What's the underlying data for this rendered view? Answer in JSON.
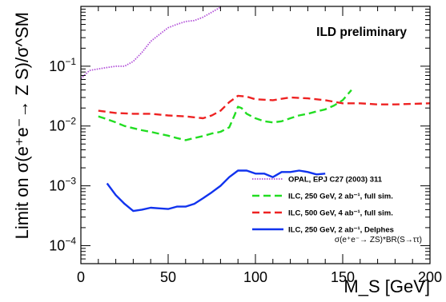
{
  "chart_data": {
    "type": "line",
    "title": "ILD preliminary",
    "xlabel": "M_S [GeV]",
    "ylabel": "Limit on σ(e⁺e⁻→ Z S)/σ^SM",
    "xlim": [
      0,
      200
    ],
    "ylim": [
      5e-05,
      1
    ],
    "y_scale": "log",
    "x_ticks": [
      0,
      50,
      100,
      150,
      200
    ],
    "y_ticks": [
      {
        "value": 0.0001,
        "base": "10",
        "exp": "−4"
      },
      {
        "value": 0.001,
        "base": "10",
        "exp": "−3"
      },
      {
        "value": 0.01,
        "base": "10",
        "exp": "−2"
      },
      {
        "value": 0.1,
        "base": "10",
        "exp": "−1"
      }
    ],
    "grid": false,
    "legend_position": "bottom-right",
    "annotation": "σ(e⁺e⁻→ ZS)*BR(S→ττ)",
    "series": [
      {
        "name": "OPAL, EPJ C27 (2003) 311",
        "color": "#b14fd8",
        "style": "dotted",
        "x": [
          0,
          5,
          10,
          15,
          20,
          25,
          30,
          35,
          40,
          45,
          50,
          55,
          60,
          65,
          70,
          75,
          80
        ],
        "y": [
          0.062,
          0.085,
          0.09,
          0.095,
          0.1,
          0.1,
          0.12,
          0.17,
          0.26,
          0.34,
          0.44,
          0.5,
          0.56,
          0.58,
          0.66,
          0.8,
          0.97
        ]
      },
      {
        "name": "ILC, 250 GeV, 2 ab⁻¹, full sim.",
        "color": "#22dd22",
        "style": "dashed",
        "x": [
          10,
          15,
          20,
          25,
          30,
          35,
          40,
          45,
          50,
          55,
          60,
          65,
          70,
          75,
          80,
          85,
          88,
          90,
          92,
          95,
          100,
          105,
          110,
          115,
          120,
          125,
          130,
          135,
          140,
          145,
          150,
          155
        ],
        "y": [
          0.0145,
          0.013,
          0.0115,
          0.01,
          0.0092,
          0.0085,
          0.008,
          0.0074,
          0.0069,
          0.0063,
          0.0058,
          0.0063,
          0.0068,
          0.0075,
          0.008,
          0.0095,
          0.015,
          0.021,
          0.02,
          0.016,
          0.0135,
          0.012,
          0.0115,
          0.012,
          0.0135,
          0.015,
          0.016,
          0.0175,
          0.019,
          0.022,
          0.027,
          0.04
        ]
      },
      {
        "name": "ILC, 500 GeV, 4 ab⁻¹, full sim.",
        "color": "#ee2222",
        "style": "dashed",
        "x": [
          10,
          20,
          30,
          40,
          50,
          60,
          70,
          75,
          80,
          85,
          90,
          95,
          100,
          110,
          120,
          130,
          140,
          150,
          160,
          170,
          180,
          190,
          200
        ],
        "y": [
          0.018,
          0.0165,
          0.016,
          0.016,
          0.015,
          0.0145,
          0.0135,
          0.015,
          0.018,
          0.025,
          0.032,
          0.031,
          0.028,
          0.027,
          0.03,
          0.029,
          0.027,
          0.024,
          0.024,
          0.023,
          0.023,
          0.0235,
          0.024
        ]
      },
      {
        "name": "ILC, 250 GeV, 2 ab⁻¹, Delphes",
        "color": "#1133ee",
        "style": "solid",
        "x": [
          15,
          20,
          25,
          30,
          35,
          40,
          45,
          50,
          55,
          60,
          65,
          70,
          75,
          80,
          85,
          90,
          95,
          100,
          105,
          110,
          115,
          120,
          125,
          130,
          135,
          140
        ],
        "y": [
          0.0011,
          0.0007,
          0.0005,
          0.00038,
          0.0004,
          0.00043,
          0.00042,
          0.00041,
          0.00045,
          0.00045,
          0.0005,
          0.00062,
          0.00078,
          0.001,
          0.0014,
          0.0018,
          0.0018,
          0.0016,
          0.0016,
          0.0014,
          0.0017,
          0.0017,
          0.0018,
          0.0017,
          0.00155,
          0.0016
        ]
      }
    ]
  }
}
